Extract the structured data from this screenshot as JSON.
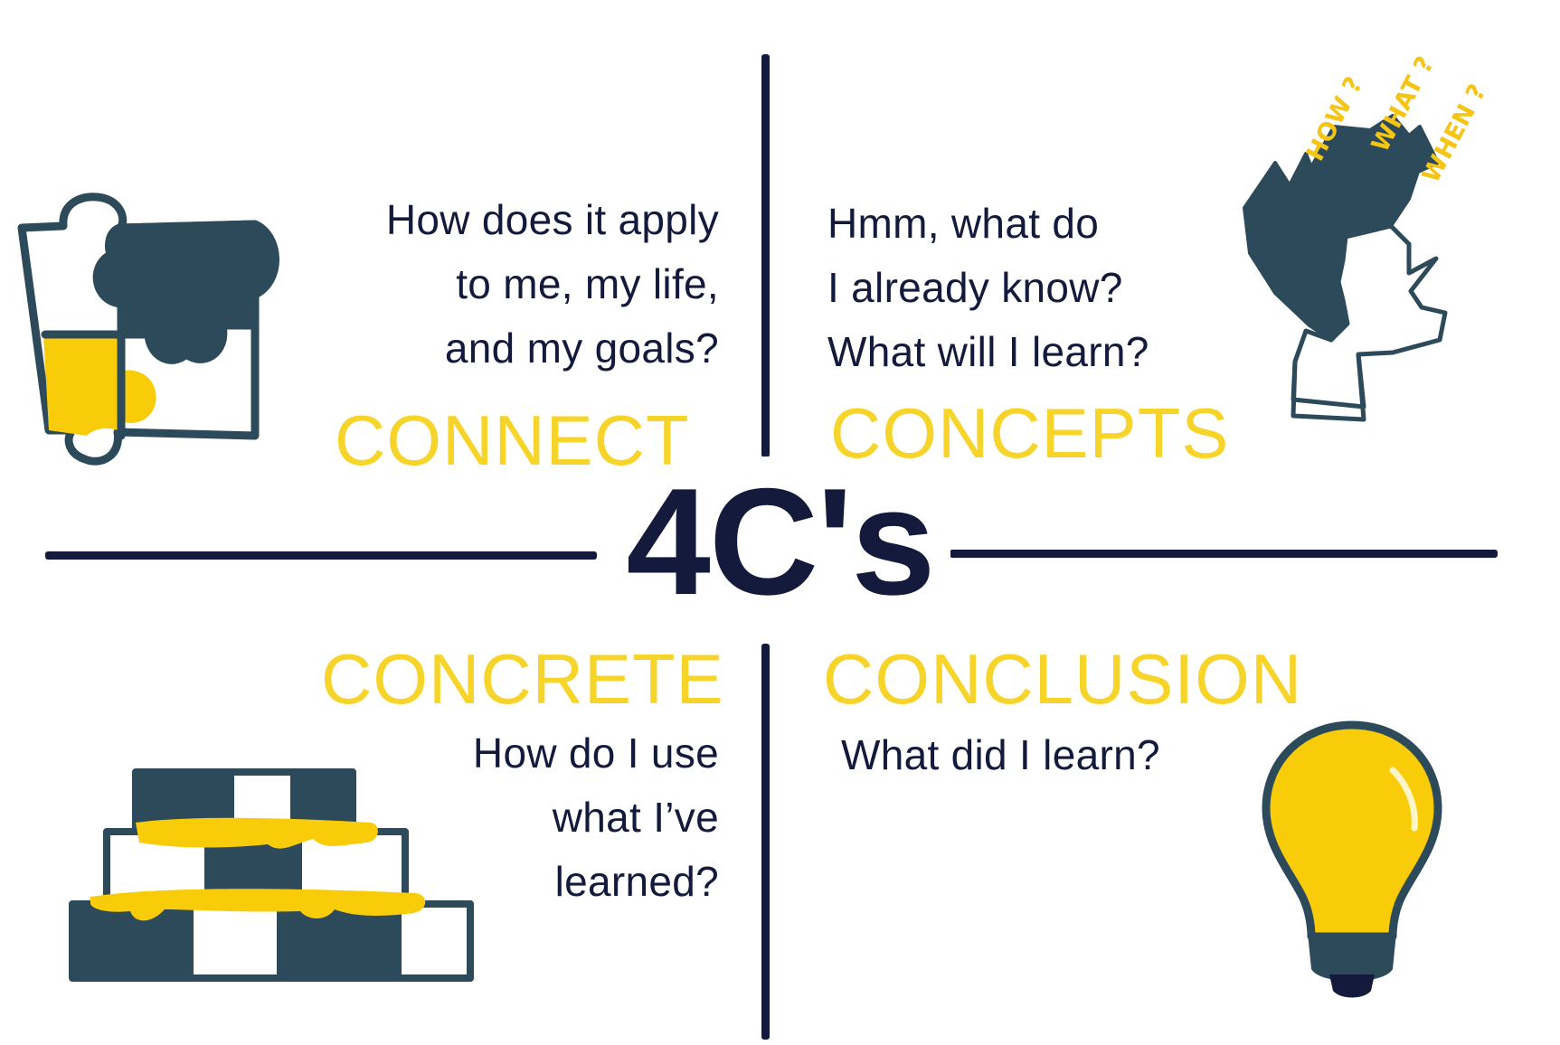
{
  "title": "4C's",
  "colors": {
    "navy": "#141a3c",
    "slate": "#2c4a5a",
    "yellow": "#f7d42a",
    "bulb_yellow": "#f9cc0a"
  },
  "quadrants": {
    "connect": {
      "heading": "CONNECT",
      "question": "How does it apply\nto me, my life,\nand my goals?",
      "icon": "puzzle-icon"
    },
    "concepts": {
      "heading": "CONCEPTS",
      "question": "Hmm, what do\nI already know?\nWhat will I learn?",
      "icon": "thinking-head-icon",
      "scribbles": [
        "HOW ?",
        "WHAT ?",
        "WHEN ?"
      ]
    },
    "concrete": {
      "heading": "CONCRETE",
      "question": "How do I use\nwhat I’ve\nlearned?",
      "icon": "brick-stack-icon"
    },
    "conclusion": {
      "heading": "CONCLUSION",
      "question": "What did I learn?",
      "icon": "lightbulb-icon"
    }
  }
}
